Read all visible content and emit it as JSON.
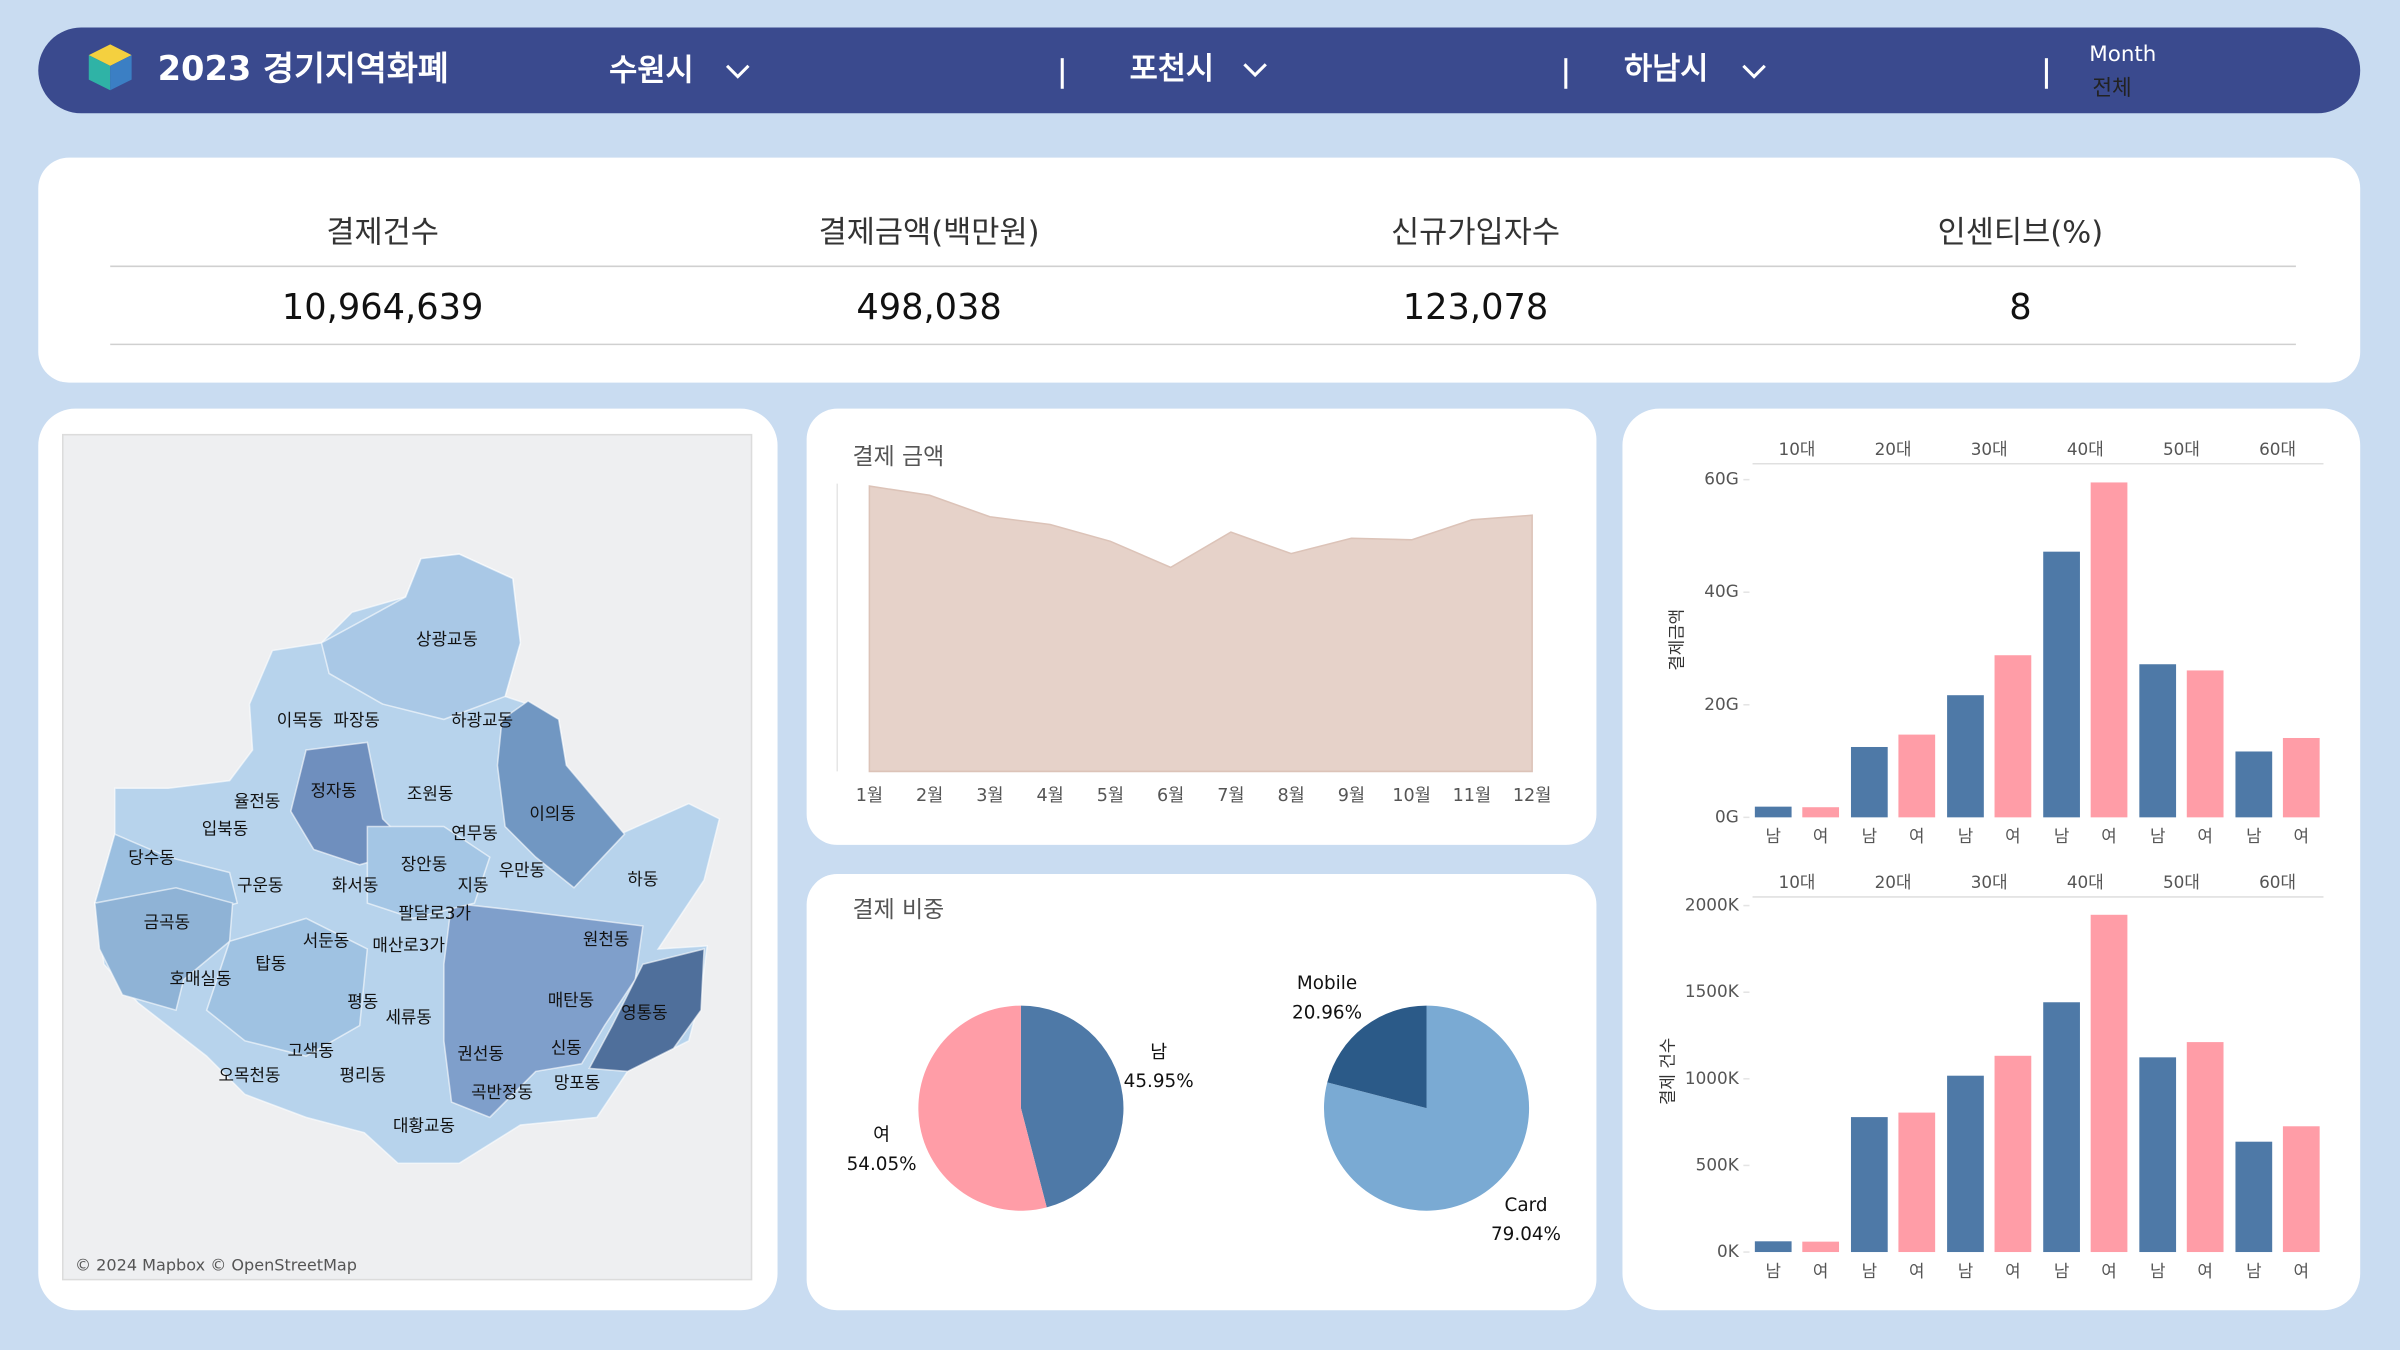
{
  "header": {
    "title": "2023 경기지역화폐",
    "filters": [
      "수원시",
      "포천시",
      "하남시"
    ],
    "month_label": "Month",
    "month_value": "전체"
  },
  "kpis": [
    {
      "label": "결제건수",
      "value": "10,964,639"
    },
    {
      "label": "결제금액(백만원)",
      "value": "498,038"
    },
    {
      "label": "신규가입자수",
      "value": "123,078"
    },
    {
      "label": "인센티브(%)",
      "value": "8"
    }
  ],
  "map": {
    "labels": [
      "상광교동",
      "이목동",
      "파장동",
      "하광교동",
      "정자동",
      "조원동",
      "율전동",
      "입북동",
      "이의동",
      "연무동",
      "당수동",
      "장안동",
      "우만동",
      "구운동",
      "화서동",
      "지동",
      "하동",
      "팔달로3가",
      "금곡동",
      "서둔동",
      "원천동",
      "매산로3가",
      "탑동",
      "호매실동",
      "평동",
      "매탄동",
      "영통동",
      "세류동",
      "고색동",
      "권선동",
      "신동",
      "오목천동",
      "평리동",
      "망포동",
      "곡반정동",
      "대황교동"
    ],
    "credit": "© 2024 Mapbox © OpenStreetMap"
  },
  "chart_data": [
    {
      "type": "area",
      "title": "결제 금액",
      "categories": [
        "1월",
        "2월",
        "3월",
        "4월",
        "5월",
        "6월",
        "7월",
        "8월",
        "9월",
        "10월",
        "11월",
        "12월"
      ],
      "values": [
        48550,
        46980,
        43330,
        42020,
        39150,
        34720,
        40720,
        37060,
        39670,
        39410,
        42810,
        43590
      ],
      "color": "#e6d2c9",
      "ylim": [
        0,
        50000
      ]
    },
    {
      "type": "pie",
      "title": "결제 비중",
      "categories": [
        "남",
        "여"
      ],
      "values": [
        45.95,
        54.05
      ],
      "value_labels": [
        "45.95%",
        "54.05%"
      ],
      "colors": [
        "#4e79a7",
        "#ff9da7"
      ]
    },
    {
      "type": "pie",
      "categories": [
        "Card",
        "Mobile"
      ],
      "values": [
        79.04,
        20.96
      ],
      "value_labels": [
        "79.04%",
        "20.96%"
      ],
      "colors": [
        "#7aaad3",
        "#2b5a88"
      ]
    },
    {
      "type": "bar",
      "y_label": "결제금액",
      "categories": [
        "10대",
        "20대",
        "30대",
        "40대",
        "50대",
        "60대"
      ],
      "series": [
        {
          "name": "남",
          "color": "#4e79a7",
          "values": [
            1.9,
            12.5,
            21.7,
            47.2,
            27.2,
            11.7
          ]
        },
        {
          "name": "여",
          "color": "#ff9da7",
          "values": [
            1.8,
            14.7,
            28.8,
            59.5,
            26.1,
            14.1
          ]
        }
      ],
      "ylim": [
        0,
        62
      ],
      "yticks": [
        {
          "value": 0,
          "label": "0G"
        },
        {
          "value": 20,
          "label": "20G"
        },
        {
          "value": 40,
          "label": "40G"
        },
        {
          "value": 60,
          "label": "60G"
        }
      ]
    },
    {
      "type": "bar",
      "y_label": "결제 건수",
      "categories": [
        "10대",
        "20대",
        "30대",
        "40대",
        "50대",
        "60대"
      ],
      "series": [
        {
          "name": "남",
          "color": "#4e79a7",
          "values": [
            62,
            779,
            1018,
            1442,
            1124,
            637
          ]
        },
        {
          "name": "여",
          "color": "#ff9da7",
          "values": [
            60,
            805,
            1133,
            1947,
            1212,
            726
          ]
        }
      ],
      "ylim": [
        0,
        2050
      ],
      "yticks": [
        {
          "value": 0,
          "label": "0K"
        },
        {
          "value": 500,
          "label": "500K"
        },
        {
          "value": 1000,
          "label": "1000K"
        },
        {
          "value": 1500,
          "label": "1500K"
        },
        {
          "value": 2000,
          "label": "2000K"
        }
      ]
    }
  ]
}
